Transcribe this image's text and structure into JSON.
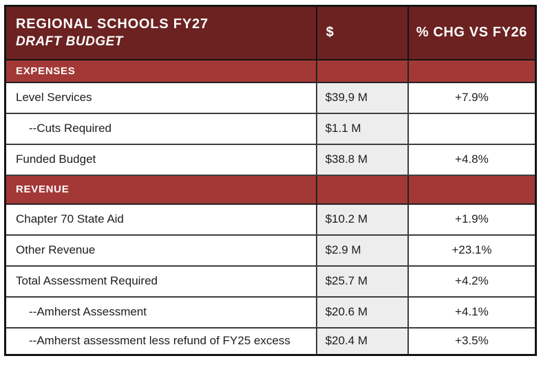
{
  "table": {
    "title_line1": "REGIONAL SCHOOLS FY27",
    "title_line2": "DRAFT BUDGET",
    "columns": {
      "dollar": "$",
      "pct_change": "% CHG VS FY26"
    },
    "rows": [
      {
        "type": "section",
        "label": "EXPENSES",
        "dollar": "",
        "pct": ""
      },
      {
        "type": "data",
        "label": "Level Services",
        "dollar": "$39,9 M",
        "pct": "+7.9%"
      },
      {
        "type": "data-indent",
        "label": "--Cuts Required",
        "dollar": "$1.1 M",
        "pct": ""
      },
      {
        "type": "data",
        "label": "Funded Budget",
        "dollar": "$38.8 M",
        "pct": "+4.8%"
      },
      {
        "type": "section",
        "label": "REVENUE",
        "dollar": "",
        "pct": ""
      },
      {
        "type": "data",
        "label": "Chapter 70 State Aid",
        "dollar": "$10.2 M",
        "pct": "+1.9%"
      },
      {
        "type": "data",
        "label": "Other Revenue",
        "dollar": "$2.9 M",
        "pct": "+23.1%"
      },
      {
        "type": "data",
        "label": "Total Assessment Required",
        "dollar": "$25.7 M",
        "pct": "+4.2%"
      },
      {
        "type": "data-indent",
        "label": "--Amherst Assessment",
        "dollar": "$20.6 M",
        "pct": "+4.1%"
      },
      {
        "type": "data-indent",
        "label": "--Amherst assessment less refund of FY25 excess",
        "dollar": "$20.4 M",
        "pct": "+3.5%"
      }
    ],
    "colors": {
      "header_bg": "#6b2221",
      "section_bg": "#a33937",
      "dollar_cell_bg": "#ededed",
      "header_text": "#ffffff",
      "body_text": "#1d1d1d",
      "border_outer": "#141414",
      "border_inner": "#3d3d3d"
    }
  }
}
